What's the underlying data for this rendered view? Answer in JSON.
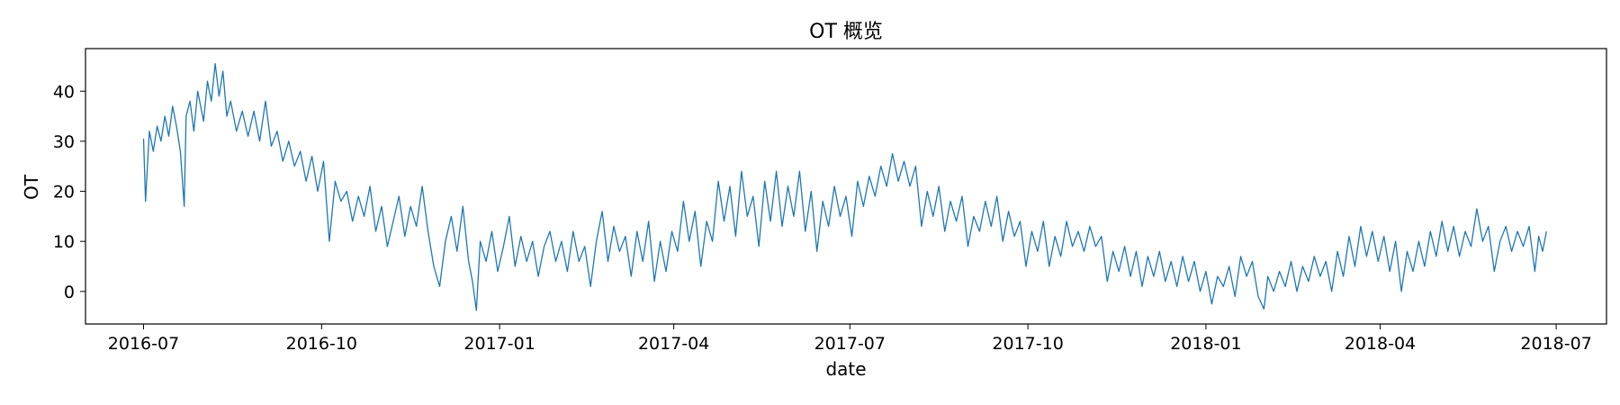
{
  "chart_data": {
    "type": "line",
    "title": "OT 概览",
    "xlabel": "date",
    "ylabel": "OT",
    "x_range": [
      "2016-06-01",
      "2018-07-27"
    ],
    "ylim": [
      -6.5,
      48.5
    ],
    "grid": false,
    "x_ticks": [
      {
        "date": "2016-07-01",
        "label": "2016-07"
      },
      {
        "date": "2016-10-01",
        "label": "2016-10"
      },
      {
        "date": "2017-01-01",
        "label": "2017-01"
      },
      {
        "date": "2017-04-01",
        "label": "2017-04"
      },
      {
        "date": "2017-07-01",
        "label": "2017-07"
      },
      {
        "date": "2017-10-01",
        "label": "2017-10"
      },
      {
        "date": "2018-01-01",
        "label": "2018-01"
      },
      {
        "date": "2018-04-01",
        "label": "2018-04"
      },
      {
        "date": "2018-07-01",
        "label": "2018-07"
      }
    ],
    "y_ticks": [
      {
        "value": 0,
        "label": "0"
      },
      {
        "value": 10,
        "label": "10"
      },
      {
        "value": 20,
        "label": "20"
      },
      {
        "value": 30,
        "label": "30"
      },
      {
        "value": 40,
        "label": "40"
      }
    ],
    "series": [
      {
        "color": "#1f77b4",
        "points": [
          [
            "2016-07-01",
            30.5
          ],
          [
            "2016-07-02",
            18.0
          ],
          [
            "2016-07-03",
            25.0
          ],
          [
            "2016-07-04",
            32.0
          ],
          [
            "2016-07-06",
            28.0
          ],
          [
            "2016-07-08",
            33.0
          ],
          [
            "2016-07-10",
            30.0
          ],
          [
            "2016-07-12",
            35.0
          ],
          [
            "2016-07-14",
            31.0
          ],
          [
            "2016-07-16",
            37.0
          ],
          [
            "2016-07-18",
            33.0
          ],
          [
            "2016-07-20",
            28.0
          ],
          [
            "2016-07-22",
            17.0
          ],
          [
            "2016-07-23",
            35.0
          ],
          [
            "2016-07-25",
            38.0
          ],
          [
            "2016-07-27",
            32.0
          ],
          [
            "2016-07-29",
            40.0
          ],
          [
            "2016-08-01",
            34.0
          ],
          [
            "2016-08-03",
            42.0
          ],
          [
            "2016-08-05",
            38.0
          ],
          [
            "2016-08-07",
            45.5
          ],
          [
            "2016-08-09",
            39.0
          ],
          [
            "2016-08-11",
            44.0
          ],
          [
            "2016-08-13",
            35.0
          ],
          [
            "2016-08-15",
            38.0
          ],
          [
            "2016-08-18",
            32.0
          ],
          [
            "2016-08-21",
            36.0
          ],
          [
            "2016-08-24",
            31.0
          ],
          [
            "2016-08-27",
            36.0
          ],
          [
            "2016-08-30",
            30.0
          ],
          [
            "2016-09-02",
            38.0
          ],
          [
            "2016-09-05",
            29.0
          ],
          [
            "2016-09-08",
            32.0
          ],
          [
            "2016-09-11",
            26.0
          ],
          [
            "2016-09-14",
            30.0
          ],
          [
            "2016-09-17",
            25.0
          ],
          [
            "2016-09-20",
            28.0
          ],
          [
            "2016-09-23",
            22.0
          ],
          [
            "2016-09-26",
            27.0
          ],
          [
            "2016-09-29",
            20.0
          ],
          [
            "2016-10-02",
            26.0
          ],
          [
            "2016-10-05",
            10.0
          ],
          [
            "2016-10-08",
            22.0
          ],
          [
            "2016-10-11",
            18.0
          ],
          [
            "2016-10-14",
            20.0
          ],
          [
            "2016-10-17",
            14.0
          ],
          [
            "2016-10-20",
            19.0
          ],
          [
            "2016-10-23",
            15.0
          ],
          [
            "2016-10-26",
            21.0
          ],
          [
            "2016-10-29",
            12.0
          ],
          [
            "2016-11-01",
            17.0
          ],
          [
            "2016-11-04",
            9.0
          ],
          [
            "2016-11-07",
            14.0
          ],
          [
            "2016-11-10",
            19.0
          ],
          [
            "2016-11-13",
            11.0
          ],
          [
            "2016-11-16",
            17.0
          ],
          [
            "2016-11-19",
            13.0
          ],
          [
            "2016-11-22",
            21.0
          ],
          [
            "2016-11-25",
            12.0
          ],
          [
            "2016-11-28",
            5.0
          ],
          [
            "2016-12-01",
            1.0
          ],
          [
            "2016-12-04",
            10.0
          ],
          [
            "2016-12-07",
            15.0
          ],
          [
            "2016-12-10",
            8.0
          ],
          [
            "2016-12-13",
            17.0
          ],
          [
            "2016-12-16",
            6.0
          ],
          [
            "2016-12-18",
            2.0
          ],
          [
            "2016-12-20",
            -3.8
          ],
          [
            "2016-12-22",
            10.0
          ],
          [
            "2016-12-25",
            6.0
          ],
          [
            "2016-12-28",
            12.0
          ],
          [
            "2016-12-31",
            4.0
          ],
          [
            "2017-01-03",
            9.0
          ],
          [
            "2017-01-06",
            15.0
          ],
          [
            "2017-01-09",
            5.0
          ],
          [
            "2017-01-12",
            11.0
          ],
          [
            "2017-01-15",
            6.0
          ],
          [
            "2017-01-18",
            10.0
          ],
          [
            "2017-01-21",
            3.0
          ],
          [
            "2017-01-24",
            9.0
          ],
          [
            "2017-01-27",
            12.0
          ],
          [
            "2017-01-30",
            6.0
          ],
          [
            "2017-02-02",
            10.0
          ],
          [
            "2017-02-05",
            4.0
          ],
          [
            "2017-02-08",
            12.0
          ],
          [
            "2017-02-11",
            6.0
          ],
          [
            "2017-02-14",
            9.0
          ],
          [
            "2017-02-17",
            1.0
          ],
          [
            "2017-02-20",
            10.0
          ],
          [
            "2017-02-23",
            16.0
          ],
          [
            "2017-02-26",
            6.0
          ],
          [
            "2017-03-01",
            13.0
          ],
          [
            "2017-03-04",
            8.0
          ],
          [
            "2017-03-07",
            11.0
          ],
          [
            "2017-03-10",
            3.0
          ],
          [
            "2017-03-13",
            12.0
          ],
          [
            "2017-03-16",
            6.0
          ],
          [
            "2017-03-19",
            14.0
          ],
          [
            "2017-03-22",
            2.0
          ],
          [
            "2017-03-25",
            10.0
          ],
          [
            "2017-03-28",
            4.0
          ],
          [
            "2017-03-31",
            12.0
          ],
          [
            "2017-04-03",
            8.0
          ],
          [
            "2017-04-06",
            18.0
          ],
          [
            "2017-04-09",
            10.0
          ],
          [
            "2017-04-12",
            16.0
          ],
          [
            "2017-04-15",
            5.0
          ],
          [
            "2017-04-18",
            14.0
          ],
          [
            "2017-04-21",
            10.0
          ],
          [
            "2017-04-24",
            22.0
          ],
          [
            "2017-04-27",
            14.0
          ],
          [
            "2017-04-30",
            21.0
          ],
          [
            "2017-05-03",
            11.0
          ],
          [
            "2017-05-06",
            24.0
          ],
          [
            "2017-05-09",
            15.0
          ],
          [
            "2017-05-12",
            19.0
          ],
          [
            "2017-05-15",
            9.0
          ],
          [
            "2017-05-18",
            22.0
          ],
          [
            "2017-05-21",
            14.0
          ],
          [
            "2017-05-24",
            24.0
          ],
          [
            "2017-05-27",
            13.0
          ],
          [
            "2017-05-30",
            21.0
          ],
          [
            "2017-06-02",
            15.0
          ],
          [
            "2017-06-05",
            24.0
          ],
          [
            "2017-06-08",
            12.0
          ],
          [
            "2017-06-11",
            20.0
          ],
          [
            "2017-06-14",
            8.0
          ],
          [
            "2017-06-17",
            18.0
          ],
          [
            "2017-06-20",
            13.0
          ],
          [
            "2017-06-23",
            21.0
          ],
          [
            "2017-06-26",
            15.0
          ],
          [
            "2017-06-29",
            19.0
          ],
          [
            "2017-07-02",
            11.0
          ],
          [
            "2017-07-05",
            22.0
          ],
          [
            "2017-07-08",
            17.0
          ],
          [
            "2017-07-11",
            23.0
          ],
          [
            "2017-07-14",
            19.0
          ],
          [
            "2017-07-17",
            25.0
          ],
          [
            "2017-07-20",
            21.0
          ],
          [
            "2017-07-23",
            27.5
          ],
          [
            "2017-07-26",
            22.0
          ],
          [
            "2017-07-29",
            26.0
          ],
          [
            "2017-08-01",
            21.0
          ],
          [
            "2017-08-04",
            25.0
          ],
          [
            "2017-08-07",
            13.0
          ],
          [
            "2017-08-10",
            20.0
          ],
          [
            "2017-08-13",
            15.0
          ],
          [
            "2017-08-16",
            21.0
          ],
          [
            "2017-08-19",
            12.0
          ],
          [
            "2017-08-22",
            18.0
          ],
          [
            "2017-08-25",
            14.0
          ],
          [
            "2017-08-28",
            19.0
          ],
          [
            "2017-08-31",
            9.0
          ],
          [
            "2017-09-03",
            15.0
          ],
          [
            "2017-09-06",
            12.0
          ],
          [
            "2017-09-09",
            18.0
          ],
          [
            "2017-09-12",
            13.0
          ],
          [
            "2017-09-15",
            19.0
          ],
          [
            "2017-09-18",
            10.0
          ],
          [
            "2017-09-21",
            16.0
          ],
          [
            "2017-09-24",
            11.0
          ],
          [
            "2017-09-27",
            14.0
          ],
          [
            "2017-09-30",
            5.0
          ],
          [
            "2017-10-03",
            12.0
          ],
          [
            "2017-10-06",
            8.0
          ],
          [
            "2017-10-09",
            14.0
          ],
          [
            "2017-10-12",
            5.0
          ],
          [
            "2017-10-15",
            11.0
          ],
          [
            "2017-10-18",
            7.0
          ],
          [
            "2017-10-21",
            14.0
          ],
          [
            "2017-10-24",
            9.0
          ],
          [
            "2017-10-27",
            12.0
          ],
          [
            "2017-10-30",
            8.0
          ],
          [
            "2017-11-02",
            13.0
          ],
          [
            "2017-11-05",
            9.0
          ],
          [
            "2017-11-08",
            11.0
          ],
          [
            "2017-11-11",
            2.0
          ],
          [
            "2017-11-14",
            8.0
          ],
          [
            "2017-11-17",
            4.0
          ],
          [
            "2017-11-20",
            9.0
          ],
          [
            "2017-11-23",
            3.0
          ],
          [
            "2017-11-26",
            8.0
          ],
          [
            "2017-11-29",
            1.0
          ],
          [
            "2017-12-02",
            7.0
          ],
          [
            "2017-12-05",
            3.0
          ],
          [
            "2017-12-08",
            8.0
          ],
          [
            "2017-12-11",
            2.0
          ],
          [
            "2017-12-14",
            6.0
          ],
          [
            "2017-12-17",
            1.0
          ],
          [
            "2017-12-20",
            7.0
          ],
          [
            "2017-12-23",
            2.0
          ],
          [
            "2017-12-26",
            6.0
          ],
          [
            "2017-12-29",
            0.0
          ],
          [
            "2018-01-01",
            4.0
          ],
          [
            "2018-01-04",
            -2.5
          ],
          [
            "2018-01-07",
            3.0
          ],
          [
            "2018-01-10",
            1.0
          ],
          [
            "2018-01-13",
            5.0
          ],
          [
            "2018-01-16",
            -1.0
          ],
          [
            "2018-01-19",
            7.0
          ],
          [
            "2018-01-22",
            3.0
          ],
          [
            "2018-01-25",
            6.0
          ],
          [
            "2018-01-28",
            -1.0
          ],
          [
            "2018-01-31",
            -3.5
          ],
          [
            "2018-02-02",
            3.0
          ],
          [
            "2018-02-05",
            0.0
          ],
          [
            "2018-02-08",
            4.0
          ],
          [
            "2018-02-11",
            1.0
          ],
          [
            "2018-02-14",
            6.0
          ],
          [
            "2018-02-17",
            0.0
          ],
          [
            "2018-02-20",
            5.0
          ],
          [
            "2018-02-23",
            2.0
          ],
          [
            "2018-02-26",
            7.0
          ],
          [
            "2018-03-01",
            3.0
          ],
          [
            "2018-03-04",
            6.0
          ],
          [
            "2018-03-07",
            0.0
          ],
          [
            "2018-03-10",
            8.0
          ],
          [
            "2018-03-13",
            3.0
          ],
          [
            "2018-03-16",
            11.0
          ],
          [
            "2018-03-19",
            5.0
          ],
          [
            "2018-03-22",
            13.0
          ],
          [
            "2018-03-25",
            7.0
          ],
          [
            "2018-03-28",
            12.0
          ],
          [
            "2018-03-31",
            6.0
          ],
          [
            "2018-04-03",
            11.0
          ],
          [
            "2018-04-06",
            4.0
          ],
          [
            "2018-04-09",
            10.0
          ],
          [
            "2018-04-12",
            0.0
          ],
          [
            "2018-04-15",
            8.0
          ],
          [
            "2018-04-18",
            4.0
          ],
          [
            "2018-04-21",
            10.0
          ],
          [
            "2018-04-24",
            5.0
          ],
          [
            "2018-04-27",
            12.0
          ],
          [
            "2018-04-30",
            7.0
          ],
          [
            "2018-05-03",
            14.0
          ],
          [
            "2018-05-06",
            8.0
          ],
          [
            "2018-05-09",
            13.0
          ],
          [
            "2018-05-12",
            7.0
          ],
          [
            "2018-05-15",
            12.0
          ],
          [
            "2018-05-18",
            9.0
          ],
          [
            "2018-05-21",
            16.5
          ],
          [
            "2018-05-24",
            10.0
          ],
          [
            "2018-05-27",
            13.0
          ],
          [
            "2018-05-30",
            4.0
          ],
          [
            "2018-06-02",
            10.0
          ],
          [
            "2018-06-05",
            13.0
          ],
          [
            "2018-06-08",
            8.0
          ],
          [
            "2018-06-11",
            12.0
          ],
          [
            "2018-06-14",
            9.0
          ],
          [
            "2018-06-17",
            13.0
          ],
          [
            "2018-06-20",
            4.0
          ],
          [
            "2018-06-22",
            11.0
          ],
          [
            "2018-06-24",
            8.0
          ],
          [
            "2018-06-26",
            12.0
          ]
        ]
      }
    ]
  }
}
